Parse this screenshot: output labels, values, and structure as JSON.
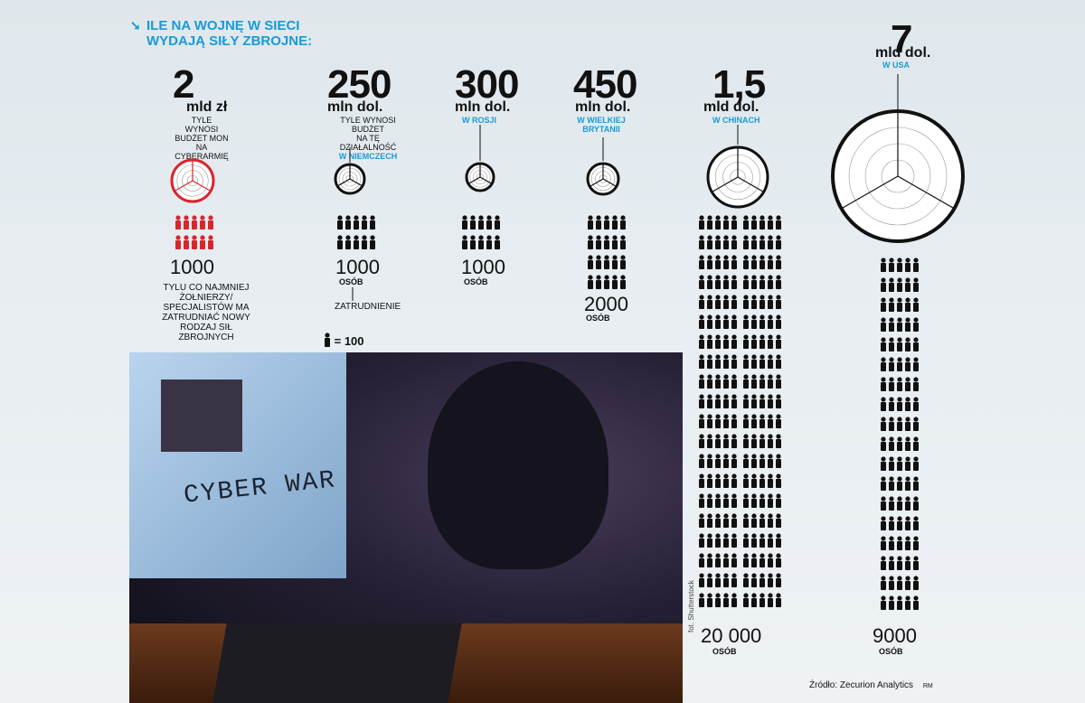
{
  "title": {
    "line1": "ILE NA WOJNĘ W SIECI",
    "line2": "WYDAJĄ SIŁY ZBROJNE:"
  },
  "legend": {
    "text": "= 100"
  },
  "colors": {
    "accent": "#1a9ad6",
    "poland": "#d7262c",
    "dark": "#111111"
  },
  "chart_data": {
    "type": "infographic",
    "title": "ILE NA WOJNĘ W SIECI WYDAJĄ SIŁY ZBROJNE:",
    "unit_icon": "person = 100",
    "items": [
      {
        "amount": "2",
        "unit": "mld zł",
        "desc1": "TYLE WYNOSI",
        "desc2": "BUDŻET MON",
        "desc3": "NA CYBERARMIĘ",
        "country": "",
        "count": "1000",
        "osob": "",
        "people": 10,
        "note": "TYLU CO NAJMNIEJ ŻOŁNIERZY/ SPECJALISTÓW MA ZATRUDNIAĆ NOWY RODZAJ SIŁ ZBROJNYCH"
      },
      {
        "amount": "250",
        "unit": "mln dol.",
        "desc1": "TYLE WYNOSI BUDŻET",
        "desc2": "NA TĘ DZIAŁALNOŚĆ",
        "desc3": "",
        "country": "W NIEMCZECH",
        "count": "1000",
        "osob": "OSÓB",
        "people": 10,
        "note": "ZATRUDNIENIE"
      },
      {
        "amount": "300",
        "unit": "mln dol.",
        "country": "W ROSJI",
        "count": "1000",
        "osob": "OSÓB",
        "people": 10
      },
      {
        "amount": "450",
        "unit": "mln dol.",
        "country": "W WIELKIEJ",
        "country2": "BRYTANII",
        "count": "2000",
        "osob": "OSÓB",
        "people": 20
      },
      {
        "amount": "1,5",
        "unit": "mld dol.",
        "country": "W CHINACH",
        "count": "20 000",
        "osob": "OSÓB",
        "people": 200
      },
      {
        "amount": "7",
        "unit": "mld dol.",
        "country": "W USA",
        "count": "9000",
        "osob": "OSÓB",
        "people": 90
      }
    ]
  },
  "photo": {
    "screen_text": "CYBER WAR"
  },
  "credit": "fot. Shutterstock",
  "source": "Źródło: Zecurion Analytics",
  "signature": "RM"
}
